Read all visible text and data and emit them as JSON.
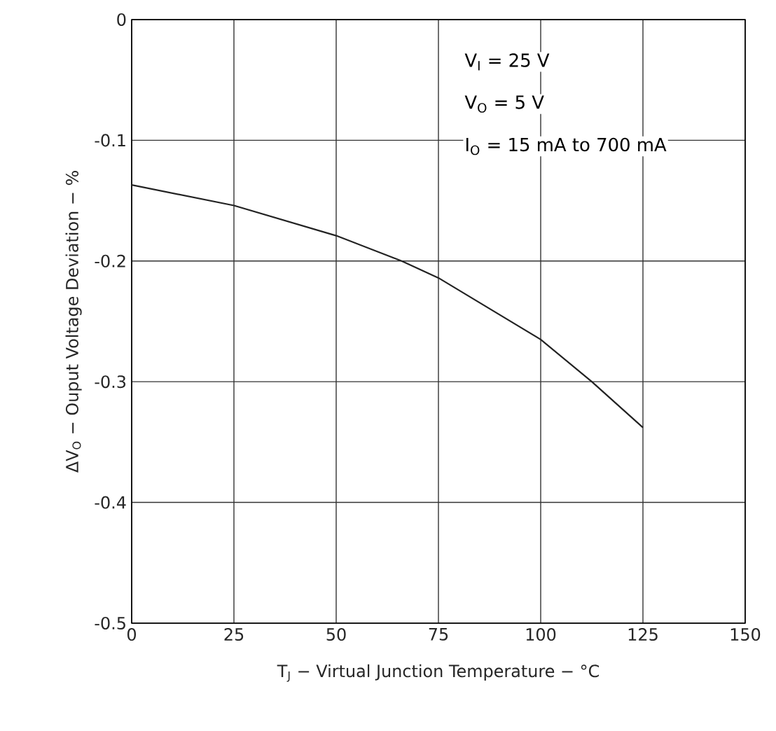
{
  "chart_data": {
    "type": "line",
    "xlabel": "T$_{J}$ − Virtual Junction Temperature − °C",
    "ylabel": "ΔV$_{O}$ − Ouput Voltage Deviation − %",
    "annotations": [
      "V$_{I}$ = 25 V",
      "V$_{O}$ = 5 V",
      "I$_{O}$ = 15 mA to 700 mA"
    ],
    "series": [
      {
        "color": "#222222",
        "x": [
          0,
          25,
          50,
          66,
          75,
          100,
          112.5,
          125
        ],
        "values": [
          -0.137,
          -0.154,
          -0.179,
          -0.2,
          -0.214,
          -0.265,
          -0.3,
          -0.338
        ]
      }
    ],
    "xlim": [
      0,
      150
    ],
    "ylim": [
      -0.5,
      0
    ],
    "xticks": [
      0,
      25,
      50,
      75,
      100,
      125,
      150
    ],
    "yticks": [
      -0.5,
      -0.4,
      -0.3,
      -0.2,
      -0.1,
      0
    ],
    "grid": true,
    "marker": "none",
    "line_style": "solid"
  }
}
